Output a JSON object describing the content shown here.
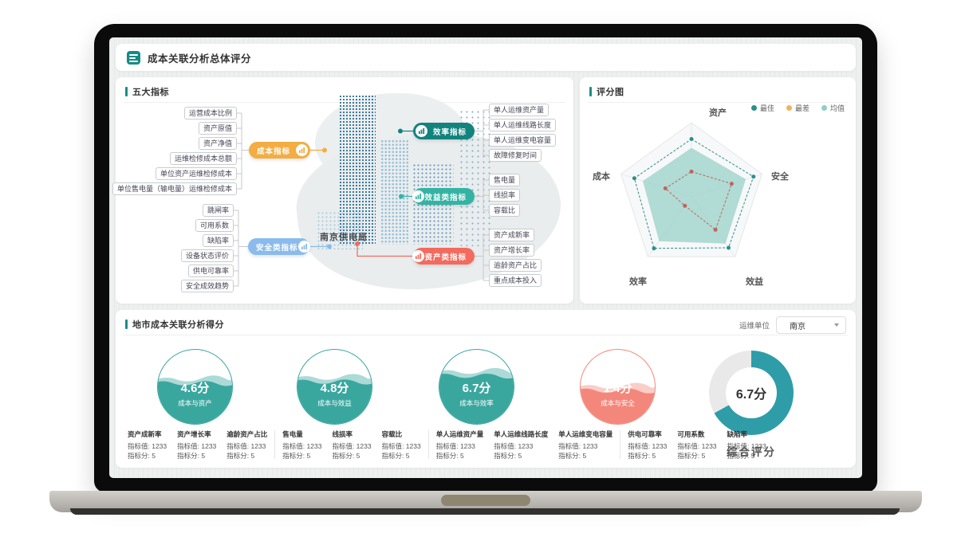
{
  "header": {
    "title": "成本关联分析总体评分"
  },
  "panels": {
    "indicators": {
      "title": "五大指标",
      "center_label": "南京供电局",
      "groups": [
        {
          "name": "成本指标",
          "color": "#f3ad43",
          "items": [
            "运营成本比例",
            "资产原值",
            "资产净值",
            "运维检修成本总额",
            "单位资产运维检修成本",
            "单位售电量（输电量）运维检修成本"
          ]
        },
        {
          "name": "安全类指标",
          "color": "#8abbec",
          "items": [
            "跳闸率",
            "可用系数",
            "缺陷率",
            "设备状态评价",
            "供电可靠率",
            "安全成效趋势"
          ]
        },
        {
          "name": "效率指标",
          "color": "#12837d",
          "items": [
            "单人运维资产量",
            "单人运维线路长度",
            "单人运维变电容量",
            "故障修复时间"
          ]
        },
        {
          "name": "效益类指标",
          "color": "#34b3a4",
          "items": [
            "售电量",
            "线损率",
            "容载比"
          ]
        },
        {
          "name": "资产类指标",
          "color": "#f26b5e",
          "items": [
            "资产成新率",
            "资产增长率",
            "逾龄资产占比",
            "重点成本投入"
          ]
        }
      ]
    },
    "radar": {
      "title": "评分图"
    },
    "scores": {
      "title": "地市成本关联分析得分",
      "unit_label": "运维单位",
      "unit_value": "南京",
      "gauges": [
        {
          "score": "4.6分",
          "label": "成本与资产",
          "color": "#3aa79f",
          "fill": 56
        },
        {
          "score": "4.8分",
          "label": "成本与效益",
          "color": "#3aa79f",
          "fill": 58
        },
        {
          "score": "6.7分",
          "label": "成本与效率",
          "color": "#3aa79f",
          "fill": 66
        },
        {
          "score": "1.4分",
          "label": "成本与安全",
          "color": "#f4877b",
          "fill": 46
        }
      ],
      "donut": {
        "score": "6.7分",
        "label": "综合评分",
        "percent": 67,
        "color": "#2f9da8",
        "track": "#e9e9e9"
      },
      "stat_groups": [
        {
          "stats": [
            {
              "name": "资产成新率",
              "value_label": "指标值: 1233",
              "score_label": "指标分: 5"
            },
            {
              "name": "资产增长率",
              "value_label": "指标值: 1233",
              "score_label": "指标分: 5"
            },
            {
              "name": "逾龄资产占比",
              "value_label": "指标值: 1233",
              "score_label": "指标分: 5"
            }
          ]
        },
        {
          "stats": [
            {
              "name": "售电量",
              "value_label": "指标值: 1233",
              "score_label": "指标分: 5"
            },
            {
              "name": "线损率",
              "value_label": "指标值: 1233",
              "score_label": "指标分: 5"
            },
            {
              "name": "容载比",
              "value_label": "指标值: 1233",
              "score_label": "指标分: 5"
            }
          ]
        },
        {
          "stats": [
            {
              "name": "单人运维资产量",
              "value_label": "指标值: 1233",
              "score_label": "指标分: 5"
            },
            {
              "name": "单人运维线路长度",
              "value_label": "指标值: 1233",
              "score_label": "指标分: 5"
            },
            {
              "name": "单人运维变电容量",
              "value_label": "指标值: 1233",
              "score_label": "指标分: 5"
            }
          ]
        },
        {
          "stats": [
            {
              "name": "供电可靠率",
              "value_label": "指标值: 1233",
              "score_label": "指标分: 5"
            },
            {
              "name": "可用系数",
              "value_label": "指标值: 1233",
              "score_label": "指标分: 5"
            },
            {
              "name": "缺陷率",
              "value_label": "指标值: 1233",
              "score_label": "指标分: 5"
            }
          ]
        }
      ]
    }
  },
  "chart_data": [
    {
      "type": "radar",
      "title": "评分图",
      "axes": [
        "资产",
        "安全",
        "效益",
        "效率",
        "成本"
      ],
      "scale": [
        0,
        10
      ],
      "series": [
        {
          "name": "最佳",
          "style": "dashed-line",
          "color": "#2a8f8a",
          "values": [
            7.8,
            8.8,
            8.5,
            8.6,
            8.1
          ]
        },
        {
          "name": "最差",
          "style": "dashed-line",
          "color": "#bf655c",
          "values": [
            3.4,
            5.7,
            5.5,
            1.5,
            3.7
          ]
        },
        {
          "name": "均值",
          "style": "filled-area",
          "color": "#9fd3cc",
          "values": [
            6.6,
            7.7,
            7.8,
            7.4,
            6.9
          ]
        }
      ],
      "legend": [
        {
          "label": "最佳",
          "color": "#2a8f8a"
        },
        {
          "label": "最差",
          "color": "#f0b25b"
        },
        {
          "label": "均值",
          "color": "#8ecfc8"
        }
      ],
      "legend_position": "top-right",
      "grid": "outer-pentagon-with-spokes"
    },
    {
      "type": "gauge",
      "scale": [
        0,
        10
      ],
      "items": [
        {
          "label": "成本与资产",
          "value": 4.6
        },
        {
          "label": "成本与效益",
          "value": 4.8
        },
        {
          "label": "成本与效率",
          "value": 6.7
        },
        {
          "label": "成本与安全",
          "value": 1.4
        }
      ]
    },
    {
      "type": "donut",
      "label": "综合评分",
      "value": 6.7,
      "scale": [
        0,
        10
      ],
      "percent": 67
    }
  ]
}
